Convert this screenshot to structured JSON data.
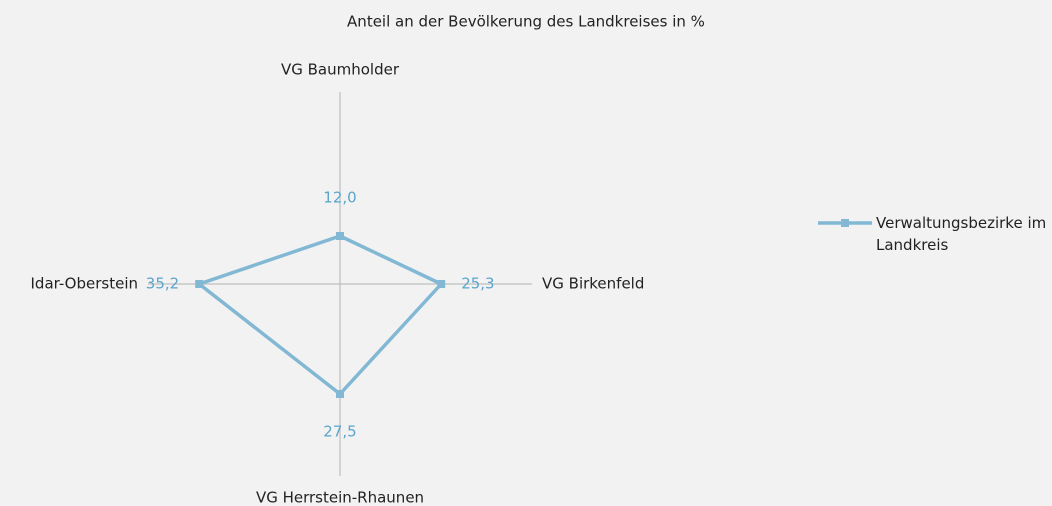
{
  "chart_data": {
    "type": "radar",
    "title": "Anteil an der Bevölkerung des Landkreises in %",
    "categories": [
      "VG Baumholder",
      "VG Birkenfeld",
      "VG Herrstein-Rhaunen",
      "Idar-Oberstein"
    ],
    "series": [
      {
        "name": "Verwaltungsbezirke im Landkreis",
        "color": "#82b8d4",
        "values": [
          12.0,
          25.3,
          27.5,
          35.2
        ],
        "value_labels": [
          "12,0",
          "25,3",
          "27,5",
          "35,2"
        ]
      }
    ],
    "ylim": [
      0,
      48
    ],
    "legend": "right"
  }
}
